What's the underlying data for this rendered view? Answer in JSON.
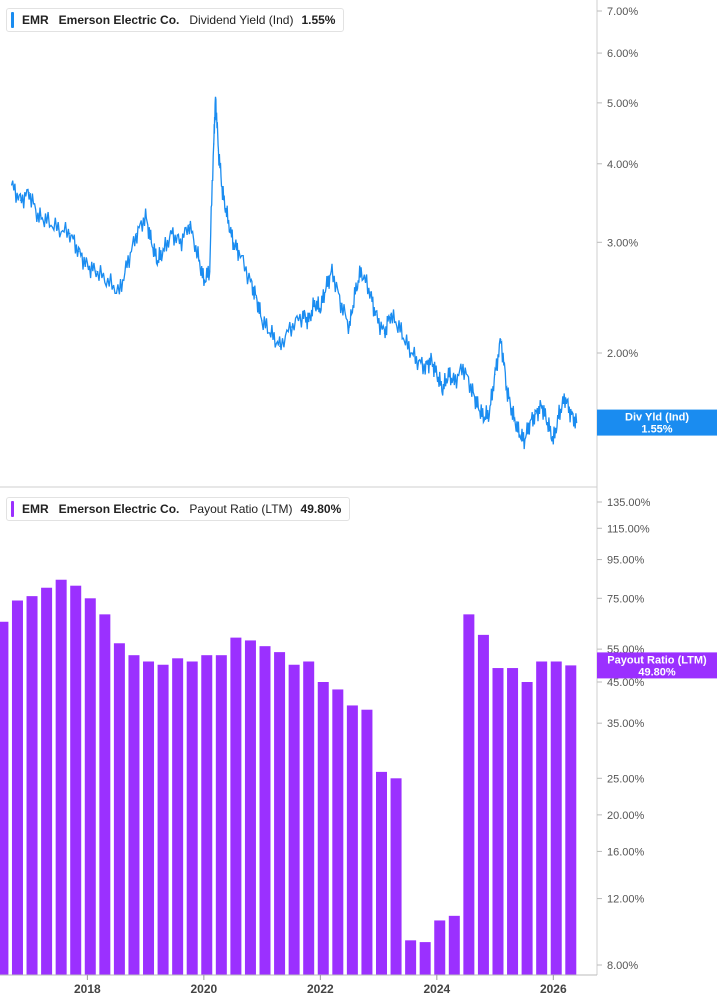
{
  "legends": [
    {
      "ticker": "EMR",
      "company": "Emerson Electric Co.",
      "metric": "Dividend Yield (Ind)",
      "value": "1.55%",
      "color": "#1a8cf0"
    },
    {
      "ticker": "EMR",
      "company": "Emerson Electric Co.",
      "metric": "Payout Ratio (LTM)",
      "value": "49.80%",
      "color": "#9b30ff"
    }
  ],
  "chart_data": [
    {
      "type": "line",
      "scale": "log",
      "color": "#1a8cf0",
      "series": [
        {
          "x": [
            2016.7,
            2016.85,
            2017.0,
            2017.15,
            2017.3,
            2017.5,
            2017.7,
            2017.85,
            2018.0,
            2018.15,
            2018.35,
            2018.55,
            2018.7,
            2018.85,
            2019.0,
            2019.1,
            2019.2,
            2019.3,
            2019.45,
            2019.6,
            2019.75,
            2019.9,
            2020.0,
            2020.1,
            2020.17,
            2020.2,
            2020.25,
            2020.32,
            2020.4,
            2020.5,
            2020.6,
            2020.8,
            2020.9,
            2021.0,
            2021.15,
            2021.3,
            2021.5,
            2021.7,
            2021.8,
            2021.9,
            2022.0,
            2022.1,
            2022.2,
            2022.35,
            2022.5,
            2022.6,
            2022.7,
            2022.85,
            2022.95,
            2023.1,
            2023.2,
            2023.35,
            2023.5,
            2023.65,
            2023.8,
            2023.9,
            2024.0,
            2024.1,
            2024.2,
            2024.3,
            2024.45,
            2024.6,
            2024.7,
            2024.8,
            2024.9,
            2025.0,
            2025.1,
            2025.2,
            2025.3,
            2025.4,
            2025.5,
            2025.6,
            2025.7,
            2025.8,
            2025.9,
            2026.0,
            2026.1,
            2026.2,
            2026.3,
            2026.4
          ],
          "y": [
            3.7,
            3.5,
            3.6,
            3.3,
            3.25,
            3.15,
            3.1,
            2.9,
            2.75,
            2.7,
            2.6,
            2.5,
            2.8,
            3.1,
            3.3,
            3.0,
            2.8,
            2.9,
            3.1,
            3.0,
            3.2,
            2.85,
            2.6,
            2.7,
            4.3,
            5.1,
            4.2,
            3.6,
            3.3,
            3.0,
            2.9,
            2.6,
            2.45,
            2.25,
            2.15,
            2.05,
            2.2,
            2.3,
            2.25,
            2.4,
            2.35,
            2.55,
            2.7,
            2.4,
            2.2,
            2.5,
            2.7,
            2.5,
            2.3,
            2.15,
            2.3,
            2.2,
            2.05,
            1.95,
            1.9,
            1.95,
            1.85,
            1.75,
            1.85,
            1.8,
            1.9,
            1.75,
            1.65,
            1.58,
            1.6,
            1.85,
            2.1,
            1.75,
            1.6,
            1.5,
            1.45,
            1.55,
            1.6,
            1.65,
            1.55,
            1.45,
            1.6,
            1.7,
            1.6,
            1.55
          ],
          "name": ""
        }
      ],
      "yticks": [
        "7.00%",
        "6.00%",
        "5.00%",
        "4.00%",
        "3.00%",
        "2.00%"
      ],
      "ytick_values": [
        7,
        6,
        5,
        4,
        3,
        2
      ],
      "last_flag": {
        "label": "Div Yld (Ind)",
        "value": "1.55%",
        "y": 1.55
      }
    },
    {
      "type": "bar",
      "scale": "log",
      "color": "#9b30ff",
      "series": [
        {
          "x": [
            2016.55,
            2016.8,
            2017.05,
            2017.3,
            2017.55,
            2017.8,
            2018.05,
            2018.3,
            2018.55,
            2018.8,
            2019.05,
            2019.3,
            2019.55,
            2019.8,
            2020.05,
            2020.3,
            2020.55,
            2020.8,
            2021.05,
            2021.3,
            2021.55,
            2021.8,
            2022.05,
            2022.3,
            2022.55,
            2022.8,
            2023.05,
            2023.3,
            2023.55,
            2023.8,
            2024.05,
            2024.3,
            2024.55,
            2024.8,
            2025.05,
            2025.3,
            2025.55,
            2025.8,
            2026.05,
            2026.3
          ],
          "y": [
            65,
            74,
            76,
            80,
            84,
            81,
            75,
            68,
            57,
            53,
            51,
            50,
            52,
            51,
            53,
            53,
            59,
            58,
            56,
            54,
            50,
            51,
            45,
            43,
            39,
            38,
            26,
            25,
            9.3,
            9.2,
            10.5,
            10.8,
            68,
            60,
            49,
            49,
            45,
            51,
            51,
            49.8
          ],
          "name": ""
        }
      ],
      "yticks": [
        "135.00%",
        "115.00%",
        "95.00%",
        "75.00%",
        "55.00%",
        "45.00%",
        "35.00%",
        "25.00%",
        "20.00%",
        "16.00%",
        "12.00%",
        "8.00%"
      ],
      "ytick_values": [
        135,
        115,
        95,
        75,
        55,
        45,
        35,
        25,
        20,
        16,
        12,
        8
      ],
      "last_flag": {
        "label": "Payout Ratio (LTM)",
        "value": "49.80%",
        "y": 49.8
      }
    }
  ],
  "xaxis": {
    "labels": [
      "2018",
      "2020",
      "2022",
      "2024",
      "2026"
    ],
    "values": [
      2018,
      2020,
      2022,
      2024,
      2026
    ],
    "range": [
      2016.5,
      2026.75
    ]
  }
}
